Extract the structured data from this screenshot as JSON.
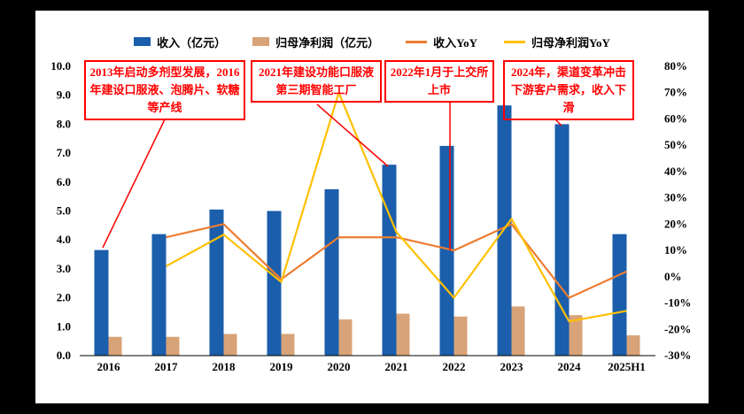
{
  "chart_data": {
    "type": "combo-bar-line",
    "title": "",
    "categories": [
      "2016",
      "2017",
      "2018",
      "2019",
      "2020",
      "2021",
      "2022",
      "2023",
      "2024",
      "2025H1"
    ],
    "series": [
      {
        "name": "收入（亿元）",
        "type": "bar",
        "axis": "left",
        "color": "#1B5EAB",
        "values": [
          3.65,
          4.2,
          5.05,
          5.0,
          5.75,
          6.6,
          7.25,
          8.65,
          8.0,
          4.2
        ]
      },
      {
        "name": "归母净利润（亿元）",
        "type": "bar",
        "axis": "left",
        "color": "#D8A378",
        "values": [
          0.65,
          0.65,
          0.75,
          0.75,
          1.25,
          1.45,
          1.35,
          1.7,
          1.4,
          0.7
        ]
      },
      {
        "name": "收入YoY",
        "type": "line",
        "axis": "right",
        "color": "#ED7D31",
        "values": [
          null,
          15,
          20,
          -1,
          15,
          15,
          10,
          20,
          -8,
          2
        ]
      },
      {
        "name": "归母净利润YoY",
        "type": "line",
        "axis": "right",
        "color": "#FFC000",
        "values": [
          null,
          4,
          16,
          -2,
          70,
          17,
          -8,
          22,
          -17,
          -13
        ]
      }
    ],
    "left_axis": {
      "min": 0,
      "max": 10,
      "step": 1,
      "ticks": [
        "0.0",
        "1.0",
        "2.0",
        "3.0",
        "4.0",
        "5.0",
        "6.0",
        "7.0",
        "8.0",
        "9.0",
        "10.0"
      ]
    },
    "right_axis": {
      "min": -30,
      "max": 80,
      "step": 10,
      "ticks": [
        "-30%",
        "-20%",
        "-10%",
        "0%",
        "10%",
        "20%",
        "30%",
        "40%",
        "50%",
        "60%",
        "70%",
        "80%"
      ]
    },
    "grid": false,
    "legend_position": "top",
    "annotation_color": "#FF0000",
    "annotations": [
      {
        "text": "2013年启动多剂型发展，2016年建设口服液、泡腾片、软糖等产线",
        "target": "2016"
      },
      {
        "text": "2021年建设功能口服液第三期智能工厂",
        "target": "2021"
      },
      {
        "text": "2022年1月于上交所上市",
        "target": "2022"
      },
      {
        "text": "2024年，渠道变革冲击下游客户需求，收入下滑",
        "target": "2024"
      }
    ]
  }
}
